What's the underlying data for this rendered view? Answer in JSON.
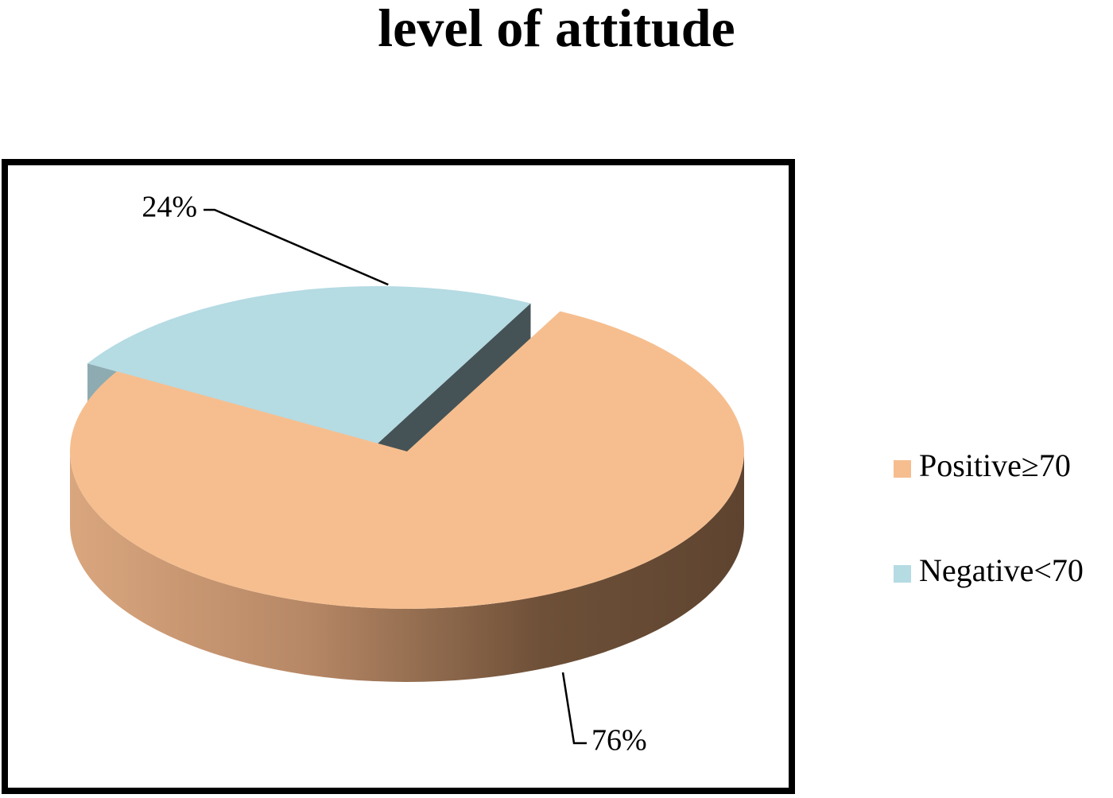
{
  "chart_data": {
    "type": "pie",
    "title": "level of attitude",
    "categories": [
      "Positive≥70",
      "Negative<70"
    ],
    "values": [
      76,
      24
    ],
    "data_labels": [
      "76%",
      "24%"
    ],
    "colors": [
      "#F6BE8F",
      "#B5DBE3"
    ],
    "exploded": "Negative<70",
    "style": "3d",
    "legend": {
      "position": "right",
      "entries": [
        "Positive≥70",
        "Negative<70"
      ]
    }
  }
}
